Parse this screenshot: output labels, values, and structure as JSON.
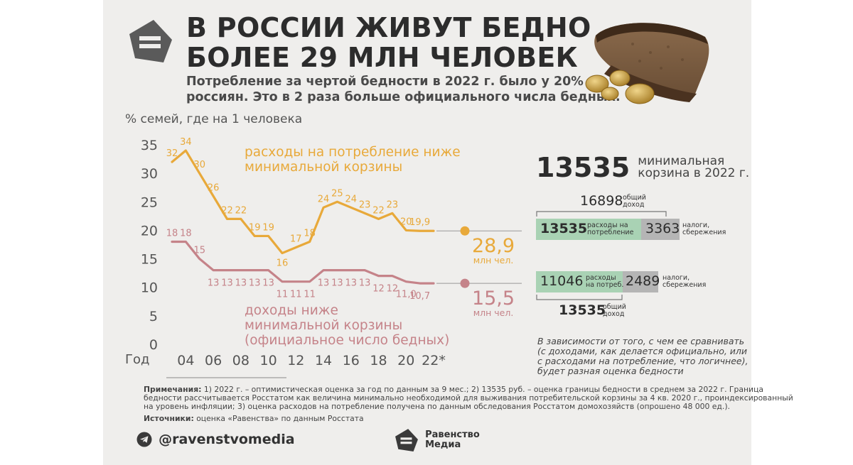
{
  "header": {
    "title_lines": [
      "В РОССИИ ЖИВУТ БЕДНО",
      "БОЛЕЕ 29 МЛН ЧЕЛОВЕК"
    ],
    "subtitle_lines": [
      "Потребление за чертой бедности в 2022 г. было у 20%",
      "россиян. Это в 2 раза больше официального числа бедных."
    ]
  },
  "chart_data": {
    "type": "line",
    "ylabel": "% семей, где на 1 человека",
    "xlabel": "Год",
    "ylim": [
      0,
      35
    ],
    "y_ticks": [
      0,
      5,
      10,
      15,
      20,
      25,
      30,
      35
    ],
    "x_range": [
      2003,
      2022
    ],
    "x_tick_labels": [
      {
        "x": 2004,
        "label": "04"
      },
      {
        "x": 2006,
        "label": "06"
      },
      {
        "x": 2008,
        "label": "08"
      },
      {
        "x": 2010,
        "label": "10"
      },
      {
        "x": 2012,
        "label": "12"
      },
      {
        "x": 2014,
        "label": "14"
      },
      {
        "x": 2016,
        "label": "16"
      },
      {
        "x": 2018,
        "label": "18"
      },
      {
        "x": 2020,
        "label": "20"
      },
      {
        "x": 2022,
        "label": "22*"
      }
    ],
    "series": [
      {
        "name": "расходы на потребление ниже минимальной корзины",
        "name_lines": [
          "расходы на потребление ниже",
          "минимальной корзины"
        ],
        "color": "#e8a93a",
        "x": [
          2003,
          2004,
          2005,
          2006,
          2007,
          2008,
          2009,
          2010,
          2011,
          2012,
          2013,
          2014,
          2015,
          2016,
          2017,
          2018,
          2019,
          2020,
          2021,
          2022
        ],
        "y": [
          32,
          34,
          30,
          26,
          22,
          22,
          19,
          19,
          16,
          17,
          18,
          24,
          25,
          24,
          23,
          22,
          23,
          20,
          19.9,
          19.9
        ],
        "labels": [
          "32",
          "34",
          "30",
          "26",
          "22",
          "22",
          "19",
          "19",
          "16",
          "17",
          "18",
          "24",
          "25",
          "24",
          "23",
          "22",
          "23",
          "20",
          "19,9",
          ""
        ],
        "end_value": "28,9",
        "end_unit": "млн чел."
      },
      {
        "name": "доходы ниже минимальной корзины (официальное число бедных)",
        "name_lines": [
          "доходы ниже",
          "минимальной корзины",
          "(официальное число бедных)"
        ],
        "color": "#c58389",
        "x": [
          2003,
          2004,
          2005,
          2006,
          2007,
          2008,
          2009,
          2010,
          2011,
          2012,
          2013,
          2014,
          2015,
          2016,
          2017,
          2018,
          2019,
          2020,
          2021,
          2022
        ],
        "y": [
          18,
          18,
          15,
          13,
          13,
          13,
          13,
          13,
          11,
          11,
          11,
          13,
          13,
          13,
          13,
          12,
          12,
          11.0,
          10.7,
          10.7
        ],
        "labels": [
          "18",
          "18",
          "15",
          "13",
          "13",
          "13",
          "13",
          "13",
          "11",
          "11",
          "11",
          "13",
          "13",
          "13",
          "13",
          "12",
          "12",
          "11,0",
          "10,7",
          ""
        ],
        "end_value": "15,5",
        "end_unit": "млн чел."
      }
    ]
  },
  "basket": {
    "value": "13535",
    "label_lines": [
      "минимальная",
      "корзина в 2022 г."
    ]
  },
  "breakdown_consumption": {
    "total_value": "16898",
    "total_label_lines": [
      "общий",
      "доход"
    ],
    "green_value": "13535",
    "green_label_lines": [
      "расходы на",
      "потребление"
    ],
    "gray_value": "3363",
    "gray_label_lines": [
      "налоги,",
      "сбережения"
    ]
  },
  "breakdown_income": {
    "green_value": "11046",
    "green_label_lines": [
      "расходы",
      "на потреб."
    ],
    "gray_value": "2489",
    "gray_label_lines": [
      "налоги,",
      "сбережения"
    ],
    "total_value": "13535",
    "total_label_lines": [
      "общий",
      "доход"
    ]
  },
  "note_lines": [
    "В зависимости от того, с чем ее сравнивать",
    "(с доходами, как делается официально, или",
    "с расходами на потребление, что логичнее),",
    "будет разная оценка бедности"
  ],
  "footnotes": {
    "notes_label": "Примечания:",
    "notes_lines": [
      "1) 2022 г. – оптимистическая оценка за год по данным за 9 мес.; 2) 13535 руб. – оценка границы бедности в среднем за 2022 г. Граница",
      "бедности рассчитывается Росстатом как величина минимально необходимой для выживания потребительской корзины за 4 кв. 2020 г., проиндексированный",
      "на уровень инфляции; 3) оценка расходов на потребление получена по данным обследования Росстатом домохозяйств (опрошено 48 000 ед.)."
    ],
    "sources_label": "Источники:",
    "sources_text": "оценка «Равенства» по данным Росстата"
  },
  "footer": {
    "telegram_handle": "@ravenstvomedia",
    "brand_lines": [
      "Равенство",
      "Медиа"
    ]
  }
}
